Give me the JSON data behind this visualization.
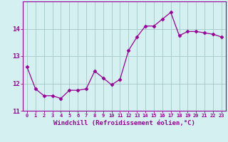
{
  "x": [
    0,
    1,
    2,
    3,
    4,
    5,
    6,
    7,
    8,
    9,
    10,
    11,
    12,
    13,
    14,
    15,
    16,
    17,
    18,
    19,
    20,
    21,
    22,
    23
  ],
  "y": [
    12.6,
    11.8,
    11.55,
    11.55,
    11.45,
    11.75,
    11.75,
    11.8,
    12.45,
    12.2,
    11.95,
    12.15,
    13.2,
    13.7,
    14.1,
    14.1,
    14.35,
    14.6,
    13.75,
    13.9,
    13.9,
    13.85,
    13.8,
    13.7
  ],
  "line_color": "#990099",
  "marker": "D",
  "marker_size": 2.5,
  "bg_color": "#d4f0f0",
  "grid_color": "#aacccc",
  "axis_color": "#990099",
  "tick_color": "#990099",
  "xlabel": "Windchill (Refroidissement éolien,°C)",
  "ylabel": "",
  "title": "",
  "ylim": [
    11.0,
    15.0
  ],
  "xlim": [
    -0.5,
    23.5
  ],
  "yticks": [
    11,
    12,
    13,
    14
  ],
  "xticks": [
    0,
    1,
    2,
    3,
    4,
    5,
    6,
    7,
    8,
    9,
    10,
    11,
    12,
    13,
    14,
    15,
    16,
    17,
    18,
    19,
    20,
    21,
    22,
    23
  ]
}
